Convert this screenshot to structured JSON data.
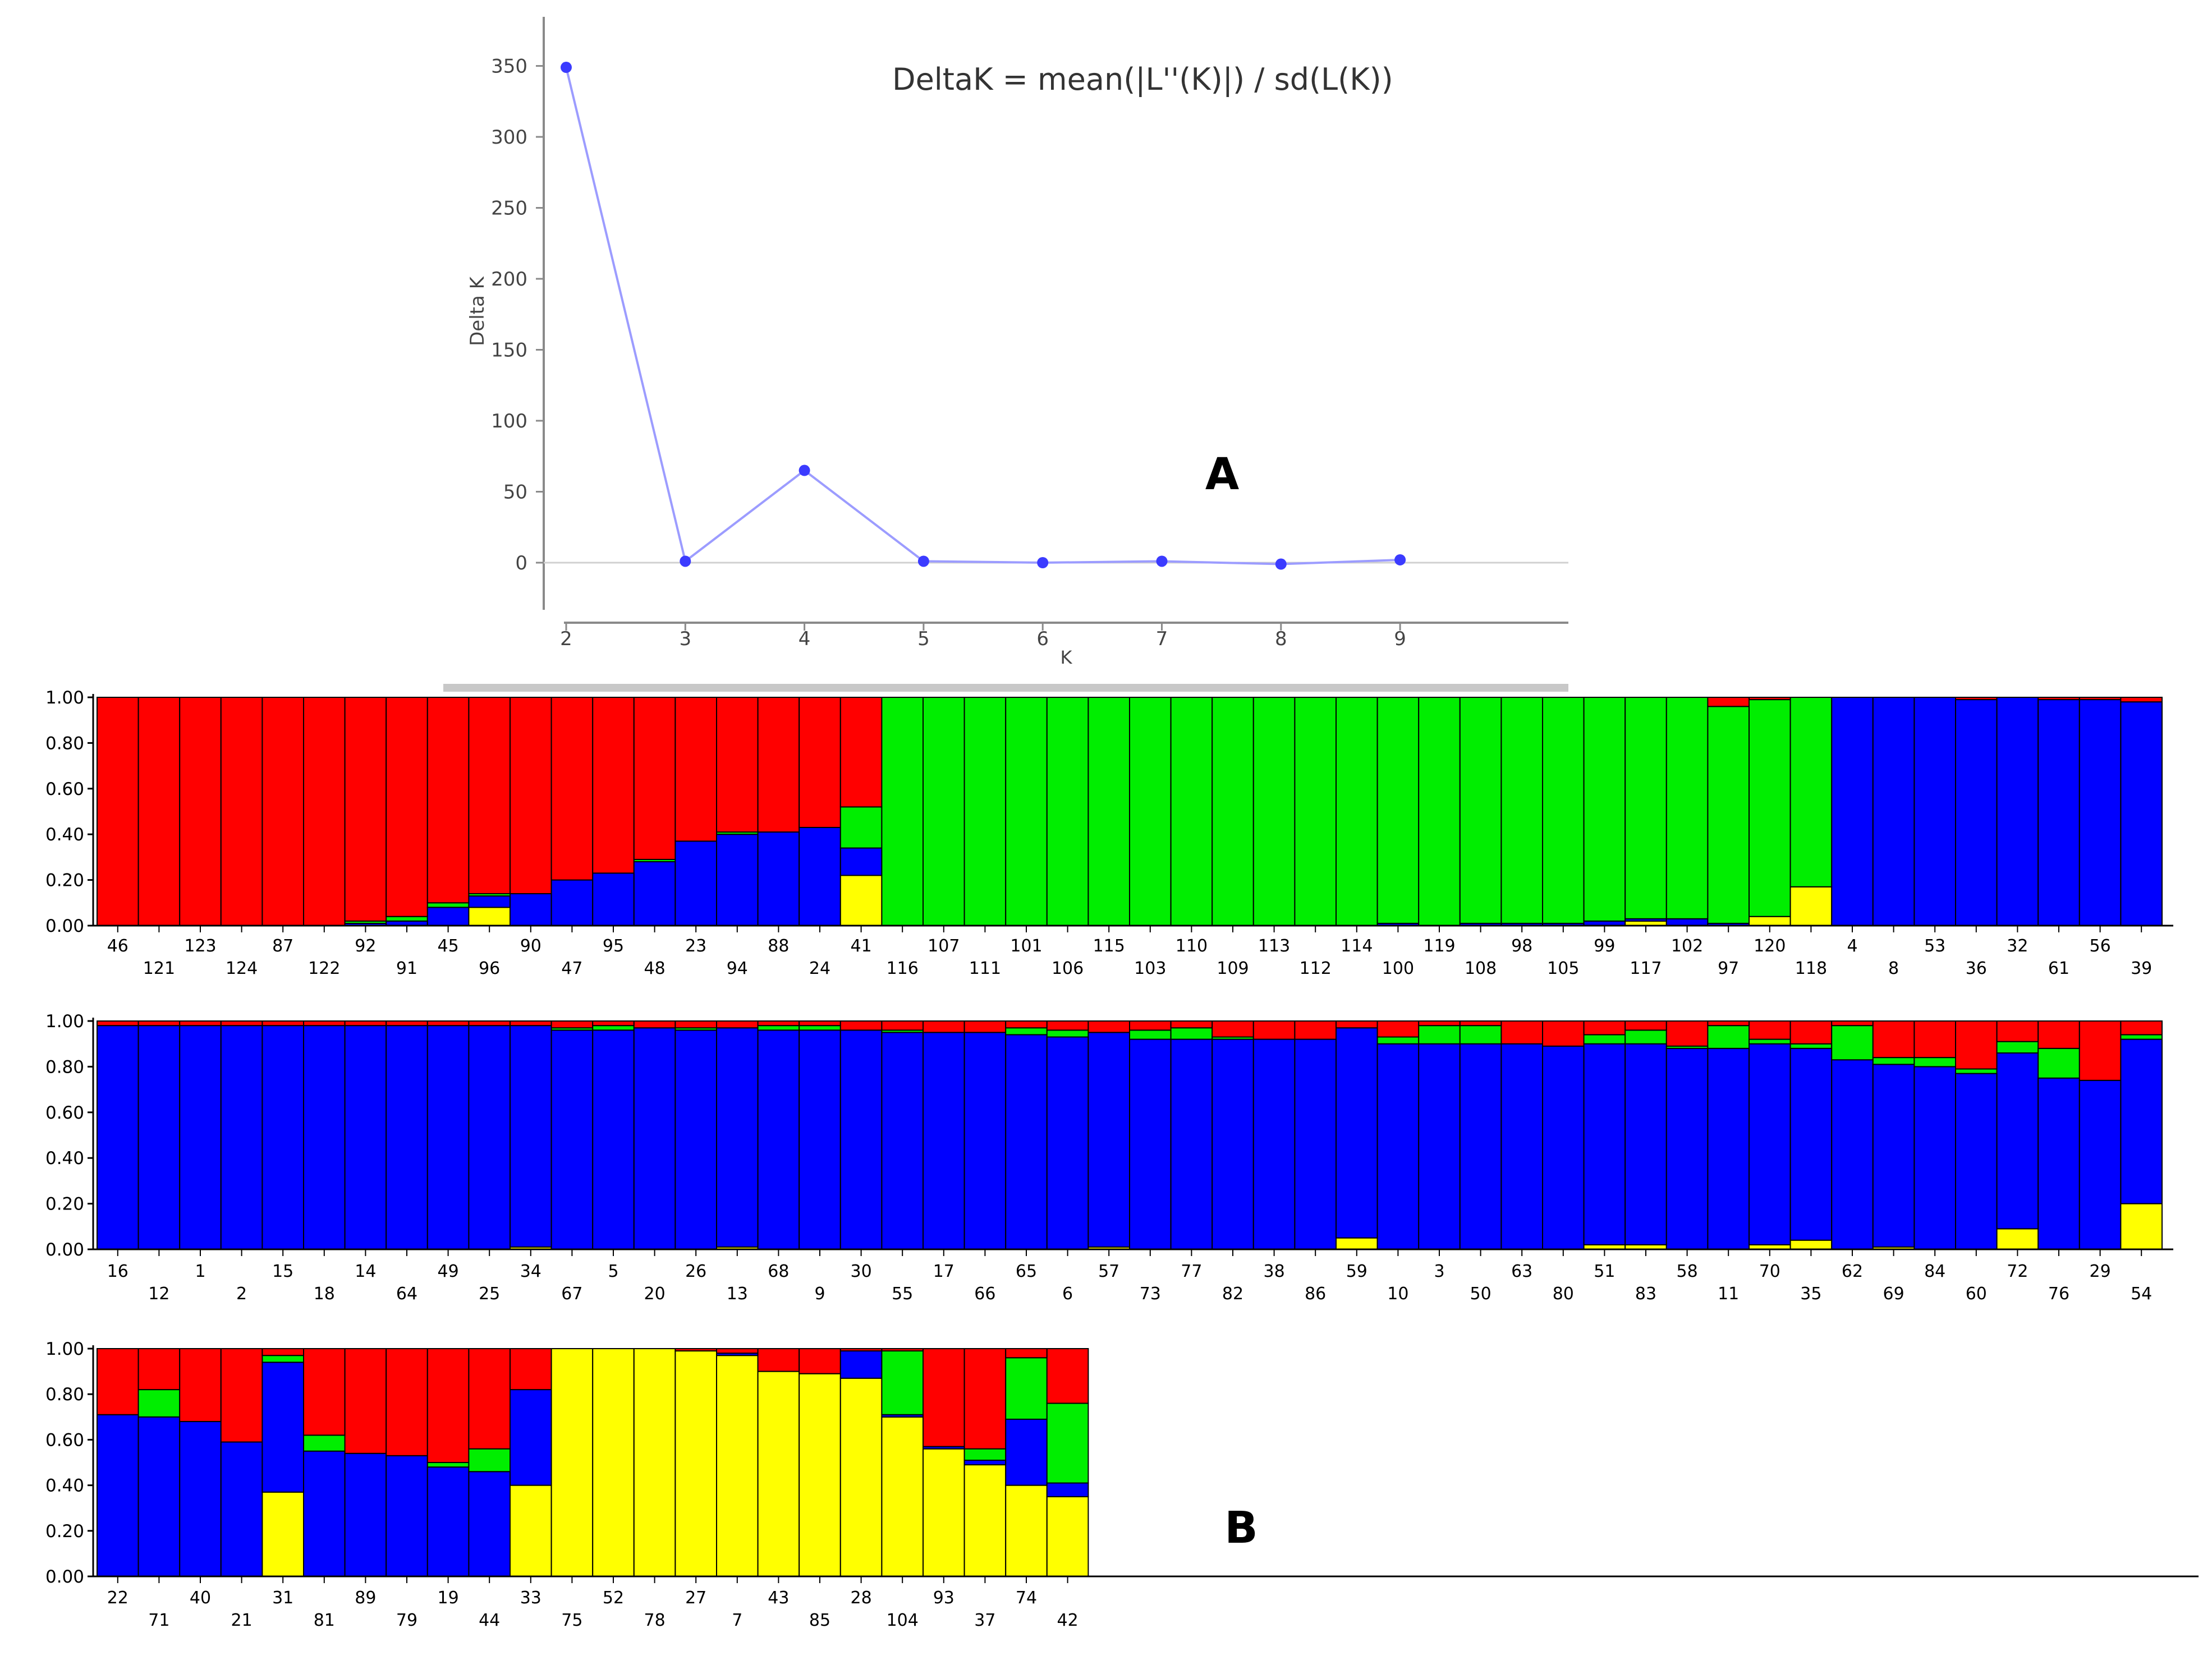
{
  "panel_labels": {
    "a": "A",
    "b": "B"
  },
  "chart_data": [
    {
      "type": "line",
      "annotation": "DeltaK = mean(|L''(K)|) / sd(L(K))",
      "xlabel": "K",
      "ylabel": "Delta K",
      "x": [
        2,
        3,
        4,
        5,
        6,
        7,
        8,
        9
      ],
      "series": [
        {
          "values": [
            349,
            1,
            65,
            1,
            0,
            1,
            -1,
            2
          ]
        }
      ],
      "xlim": [
        1,
        9.7
      ],
      "ylim": [
        -35,
        380
      ],
      "yticks": [
        0,
        50,
        100,
        150,
        200,
        250,
        300,
        350
      ],
      "xticks": [
        2,
        3,
        4,
        5,
        6,
        7,
        8,
        9
      ],
      "color": "#3b3bff",
      "line_color": "#9c9cff"
    },
    {
      "type": "bar",
      "stacked": true,
      "components": [
        "yellow",
        "blue",
        "green",
        "red"
      ],
      "colors": [
        "#ffff00",
        "#0000ff",
        "#00ee00",
        "#ff0000"
      ],
      "ylim": [
        0,
        1
      ],
      "yticks": [
        "0.00",
        "0.20",
        "0.40",
        "0.60",
        "0.80",
        "1.00"
      ],
      "rows": [
        {
          "categories": [
            "46",
            "121",
            "123",
            "124",
            "87",
            "122",
            "92",
            "91",
            "45",
            "96",
            "90",
            "47",
            "95",
            "48",
            "23",
            "94",
            "88",
            "24",
            "41",
            "116",
            "107",
            "111",
            "101",
            "106",
            "115",
            "103",
            "110",
            "109",
            "113",
            "112",
            "114",
            "100",
            "119",
            "108",
            "98",
            "105",
            "99",
            "117",
            "102",
            "97",
            "120",
            "118",
            "4",
            "8",
            "53",
            "36",
            "32",
            "61",
            "56",
            "39"
          ],
          "values": [
            [
              0,
              0,
              0,
              1
            ],
            [
              0,
              0,
              0,
              1
            ],
            [
              0,
              0,
              0,
              1
            ],
            [
              0,
              0,
              0,
              1
            ],
            [
              0,
              0,
              0,
              1
            ],
            [
              0,
              0,
              0,
              1
            ],
            [
              0,
              0.01,
              0.01,
              0.98
            ],
            [
              0,
              0.02,
              0.02,
              0.96
            ],
            [
              0,
              0.08,
              0.02,
              0.9
            ],
            [
              0.08,
              0.05,
              0.01,
              0.86
            ],
            [
              0,
              0.14,
              0,
              0.86
            ],
            [
              0,
              0.2,
              0,
              0.8
            ],
            [
              0,
              0.23,
              0,
              0.77
            ],
            [
              0,
              0.28,
              0.01,
              0.71
            ],
            [
              0,
              0.37,
              0,
              0.63
            ],
            [
              0,
              0.4,
              0.01,
              0.59
            ],
            [
              0,
              0.41,
              0,
              0.59
            ],
            [
              0,
              0.43,
              0,
              0.57
            ],
            [
              0.22,
              0.12,
              0.18,
              0.48
            ],
            [
              0,
              0,
              1,
              0
            ],
            [
              0,
              0,
              1,
              0
            ],
            [
              0,
              0,
              1,
              0
            ],
            [
              0,
              0,
              1,
              0
            ],
            [
              0,
              0,
              1,
              0
            ],
            [
              0,
              0,
              1,
              0
            ],
            [
              0,
              0,
              1,
              0
            ],
            [
              0,
              0,
              1,
              0
            ],
            [
              0,
              0,
              1,
              0
            ],
            [
              0,
              0,
              1,
              0
            ],
            [
              0,
              0,
              1,
              0
            ],
            [
              0,
              0,
              1,
              0
            ],
            [
              0,
              0.01,
              0.99,
              0
            ],
            [
              0,
              0,
              1,
              0
            ],
            [
              0,
              0.01,
              0.99,
              0
            ],
            [
              0,
              0.01,
              0.99,
              0
            ],
            [
              0,
              0.01,
              0.99,
              0
            ],
            [
              0,
              0.02,
              0.98,
              0
            ],
            [
              0.02,
              0.01,
              0.97,
              0
            ],
            [
              0,
              0.03,
              0.97,
              0
            ],
            [
              0,
              0.01,
              0.95,
              0.04
            ],
            [
              0.04,
              0,
              0.95,
              0.01
            ],
            [
              0.17,
              0,
              0.83,
              0
            ],
            [
              0,
              1,
              0,
              0
            ],
            [
              0,
              1,
              0,
              0
            ],
            [
              0,
              1,
              0,
              0
            ],
            [
              0,
              0.99,
              0,
              0.01
            ],
            [
              0,
              1,
              0,
              0
            ],
            [
              0,
              0.99,
              0,
              0.01
            ],
            [
              0,
              0.99,
              0,
              0.01
            ],
            [
              0,
              0.98,
              0,
              0.02
            ]
          ]
        },
        {
          "categories": [
            "16",
            "12",
            "1",
            "2",
            "15",
            "18",
            "14",
            "64",
            "49",
            "25",
            "34",
            "67",
            "5",
            "20",
            "26",
            "13",
            "68",
            "9",
            "30",
            "55",
            "17",
            "66",
            "65",
            "6",
            "57",
            "73",
            "77",
            "82",
            "38",
            "86",
            "59",
            "10",
            "3",
            "50",
            "63",
            "80",
            "51",
            "83",
            "58",
            "11",
            "70",
            "35",
            "62",
            "69",
            "84",
            "60",
            "72",
            "76",
            "29",
            "54"
          ],
          "values": [
            [
              0,
              0.98,
              0,
              0.02
            ],
            [
              0,
              0.98,
              0,
              0.02
            ],
            [
              0,
              0.98,
              0,
              0.02
            ],
            [
              0,
              0.98,
              0,
              0.02
            ],
            [
              0,
              0.98,
              0,
              0.02
            ],
            [
              0,
              0.98,
              0,
              0.02
            ],
            [
              0,
              0.98,
              0,
              0.02
            ],
            [
              0,
              0.98,
              0,
              0.02
            ],
            [
              0,
              0.98,
              0,
              0.02
            ],
            [
              0,
              0.98,
              0,
              0.02
            ],
            [
              0.01,
              0.97,
              0,
              0.02
            ],
            [
              0,
              0.96,
              0.01,
              0.03
            ],
            [
              0,
              0.96,
              0.02,
              0.02
            ],
            [
              0,
              0.97,
              0,
              0.03
            ],
            [
              0,
              0.96,
              0.01,
              0.03
            ],
            [
              0.01,
              0.96,
              0,
              0.03
            ],
            [
              0,
              0.96,
              0.02,
              0.02
            ],
            [
              0,
              0.96,
              0.02,
              0.02
            ],
            [
              0,
              0.96,
              0,
              0.04
            ],
            [
              0,
              0.95,
              0.01,
              0.04
            ],
            [
              0,
              0.95,
              0,
              0.05
            ],
            [
              0,
              0.95,
              0,
              0.05
            ],
            [
              0,
              0.94,
              0.03,
              0.03
            ],
            [
              0,
              0.93,
              0.03,
              0.04
            ],
            [
              0.01,
              0.94,
              0,
              0.05
            ],
            [
              0,
              0.92,
              0.04,
              0.04
            ],
            [
              0,
              0.92,
              0.05,
              0.03
            ],
            [
              0,
              0.92,
              0.01,
              0.07
            ],
            [
              0,
              0.92,
              0,
              0.08
            ],
            [
              0,
              0.92,
              0,
              0.08
            ],
            [
              0.05,
              0.92,
              0,
              0.03
            ],
            [
              0,
              0.9,
              0.03,
              0.07
            ],
            [
              0,
              0.9,
              0.08,
              0.02
            ],
            [
              0,
              0.9,
              0.08,
              0.02
            ],
            [
              0,
              0.9,
              0,
              0.1
            ],
            [
              0,
              0.89,
              0,
              0.11
            ],
            [
              0.02,
              0.88,
              0.04,
              0.06
            ],
            [
              0.02,
              0.88,
              0.06,
              0.04
            ],
            [
              0,
              0.88,
              0.01,
              0.11
            ],
            [
              0,
              0.88,
              0.1,
              0.02
            ],
            [
              0.02,
              0.88,
              0.02,
              0.08
            ],
            [
              0.04,
              0.84,
              0.02,
              0.1
            ],
            [
              0,
              0.83,
              0.15,
              0.02
            ],
            [
              0.01,
              0.8,
              0.03,
              0.16
            ],
            [
              0,
              0.8,
              0.04,
              0.16
            ],
            [
              0,
              0.77,
              0.02,
              0.21
            ],
            [
              0.09,
              0.77,
              0.05,
              0.09
            ],
            [
              0,
              0.75,
              0.13,
              0.12
            ],
            [
              0,
              0.74,
              0,
              0.26
            ],
            [
              0.2,
              0.72,
              0.02,
              0.06
            ]
          ]
        },
        {
          "categories": [
            "22",
            "71",
            "40",
            "21",
            "31",
            "81",
            "89",
            "79",
            "19",
            "44",
            "33",
            "75",
            "52",
            "78",
            "27",
            "7",
            "43",
            "85",
            "28",
            "104",
            "93",
            "37",
            "74",
            "42"
          ],
          "values": [
            [
              0,
              0.71,
              0,
              0.29
            ],
            [
              0,
              0.7,
              0.12,
              0.18
            ],
            [
              0,
              0.68,
              0,
              0.32
            ],
            [
              0,
              0.59,
              0,
              0.41
            ],
            [
              0.37,
              0.57,
              0.03,
              0.03
            ],
            [
              0,
              0.55,
              0.07,
              0.38
            ],
            [
              0,
              0.54,
              0,
              0.46
            ],
            [
              0,
              0.53,
              0,
              0.47
            ],
            [
              0,
              0.48,
              0.02,
              0.5
            ],
            [
              0,
              0.46,
              0.1,
              0.44
            ],
            [
              0.4,
              0.42,
              0,
              0.18
            ],
            [
              1,
              0,
              0,
              0
            ],
            [
              1,
              0,
              0,
              0
            ],
            [
              1,
              0,
              0,
              0
            ],
            [
              0.99,
              0,
              0,
              0.01
            ],
            [
              0.97,
              0.01,
              0,
              0.02
            ],
            [
              0.9,
              0,
              0,
              0.1
            ],
            [
              0.89,
              0,
              0,
              0.11
            ],
            [
              0.87,
              0.12,
              0,
              0.01
            ],
            [
              0.7,
              0.01,
              0.28,
              0.01
            ],
            [
              0.56,
              0.01,
              0,
              0.43
            ],
            [
              0.49,
              0.02,
              0.05,
              0.44
            ],
            [
              0.4,
              0.29,
              0.27,
              0.04
            ],
            [
              0.35,
              0.06,
              0.35,
              0.24
            ]
          ]
        }
      ]
    }
  ]
}
